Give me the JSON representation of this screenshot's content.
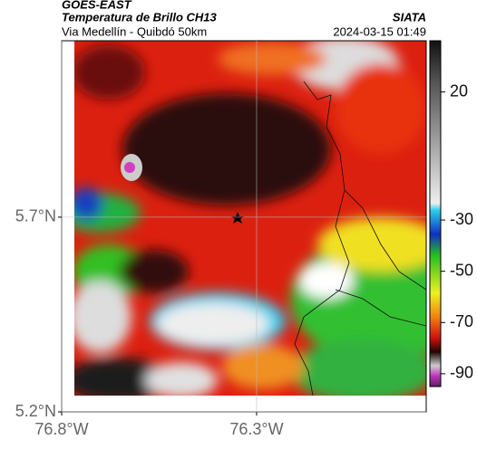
{
  "header": {
    "satellite": "GOES-EAST",
    "product": "Temperatura de Brillo CH13",
    "route": "Via Medellín - Quibdó 50km",
    "source": "SIATA",
    "timestamp": "2024-03-15 01:49"
  },
  "map": {
    "xlim": [
      -76.8,
      -75.865
    ],
    "ylim": [
      5.2,
      6.153
    ],
    "xticks": [
      {
        "value": -76.8,
        "label": "76.8°W"
      },
      {
        "value": -76.3,
        "label": "76.3°W"
      }
    ],
    "yticks": [
      {
        "value": 5.2,
        "label": "5.2°N"
      },
      {
        "value": 5.7,
        "label": "5.7°N"
      }
    ],
    "grid": true
  },
  "colorbar": {
    "lim": [
      -95,
      40
    ],
    "ticks": [
      20,
      -30,
      -50,
      -70,
      -90
    ]
  }
}
